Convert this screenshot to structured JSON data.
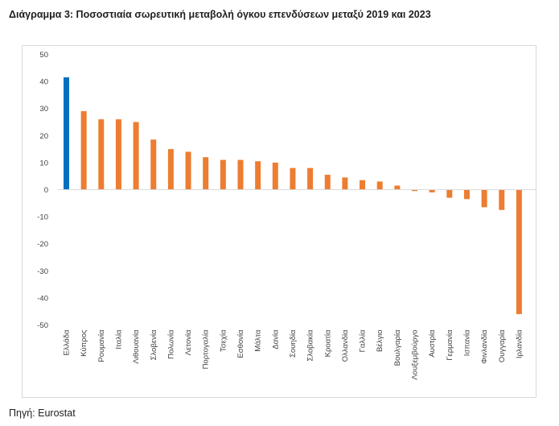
{
  "title": "Διάγραμμα 3:  Ποσοστιαία σωρευτική μεταβολή όγκου επενδύσεων μεταξύ 2019 και 2023",
  "source": "Πηγή: Eurostat",
  "colors": {
    "highlight": "#0070C0",
    "default": "#ED7D31",
    "axis": "#d9d9d9",
    "text": "#404040"
  },
  "chart_data": {
    "type": "bar",
    "title": "",
    "xlabel": "",
    "ylabel": "",
    "ylim": [
      -50,
      50
    ],
    "yticks": [
      "50",
      "40",
      "30",
      "20",
      "10",
      "0",
      "-10",
      "-20",
      "-30",
      "-40",
      "-50"
    ],
    "grid": false,
    "legend": "none",
    "categories": [
      "Ελλάδα",
      "Κύπρος",
      "Ρουμανία",
      "Ιταλία",
      "Λιθουανία",
      "Σλοβενία",
      "Πολωνία",
      "Λετονία",
      "Πορτογαλία",
      "Τσεχία",
      "Εσθονία",
      "Μάλτα",
      "Δανία",
      "Σουηδία",
      "Σλοβακία",
      "Κροατία",
      "Ολλανδία",
      "Γαλλία",
      "Βέλγιο",
      "Βουλγαρία",
      "Λουξεμβούργο",
      "Αυστρία",
      "Γερμανία",
      "Ισπανία",
      "Φινλανδία",
      "Ουγγαρία",
      "Ιρλανδία"
    ],
    "values": [
      41.5,
      29,
      26,
      26,
      25,
      18.5,
      15,
      14,
      12,
      11,
      11,
      10.5,
      10,
      8,
      8,
      5.5,
      4.5,
      3.5,
      3,
      1.5,
      -0.5,
      -1,
      -3,
      -3.5,
      -6.5,
      -7.5,
      -46
    ],
    "highlight_index": 0
  }
}
